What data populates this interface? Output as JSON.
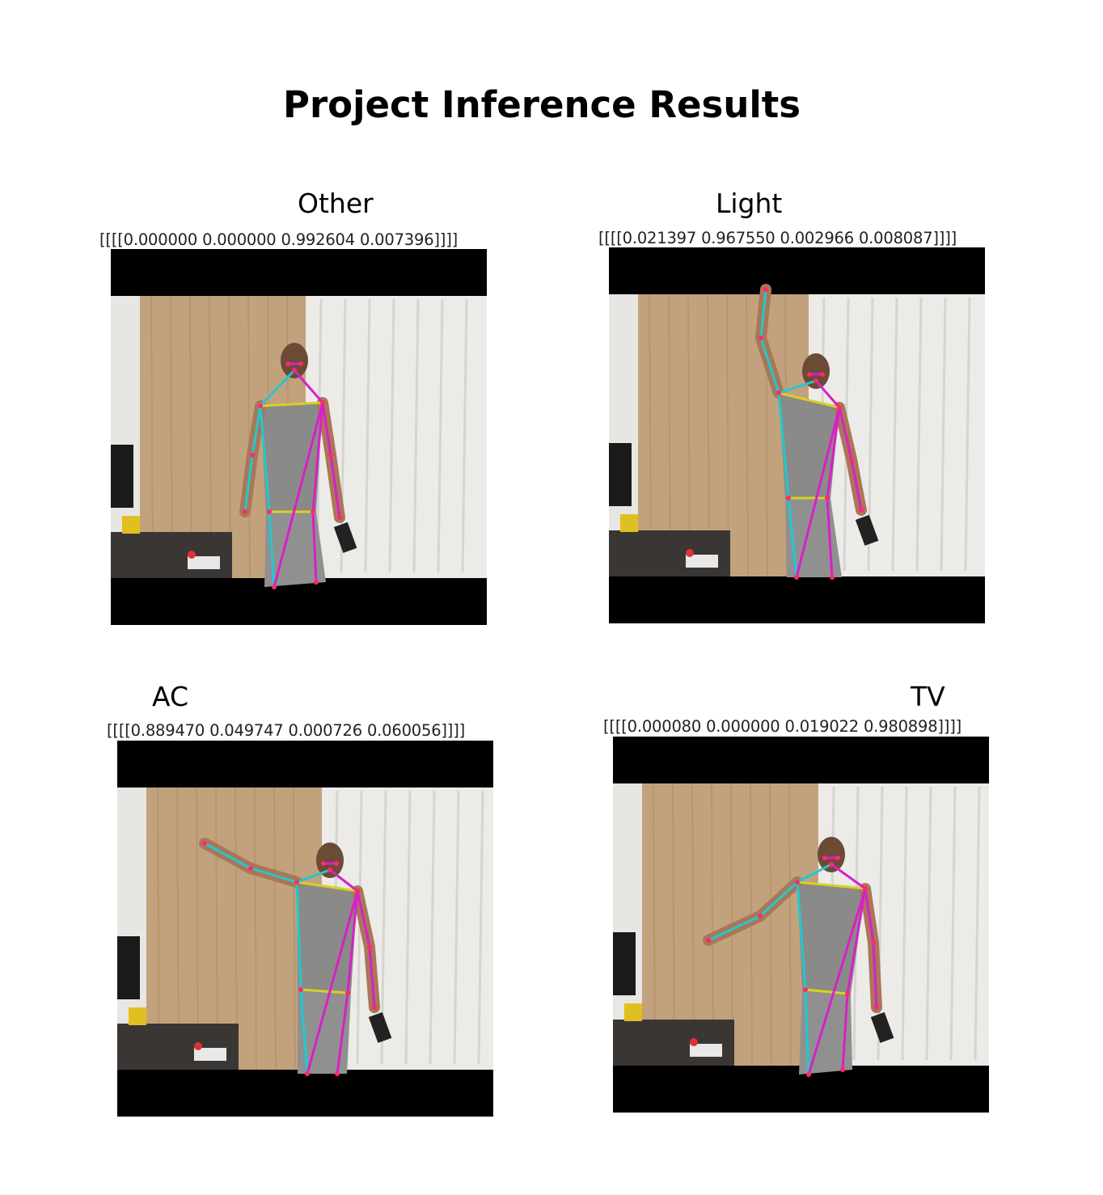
{
  "title": "Project Inference Results",
  "panels": [
    {
      "label": "Other",
      "probs": "[[[[0.000000 0.000000 0.992604 0.007396]]]]",
      "pose": "arms-down"
    },
    {
      "label": "Light",
      "probs": "[[[[0.021397 0.967550 0.002966 0.008087]]]]",
      "pose": "right-arm-up"
    },
    {
      "label": "AC",
      "probs": "[[[[0.889470 0.049747 0.000726 0.060056]]]]",
      "pose": "right-arm-out-up"
    },
    {
      "label": "TV",
      "probs": "[[[[0.000080 0.000000 0.019022 0.980898]]]]",
      "pose": "right-arm-out-down"
    }
  ],
  "colors": {
    "cyan_limb": "#22c8d0",
    "magenta_limb": "#d820c8",
    "yellow_limb": "#d8d020",
    "keypoint": "#ff2a6a"
  }
}
